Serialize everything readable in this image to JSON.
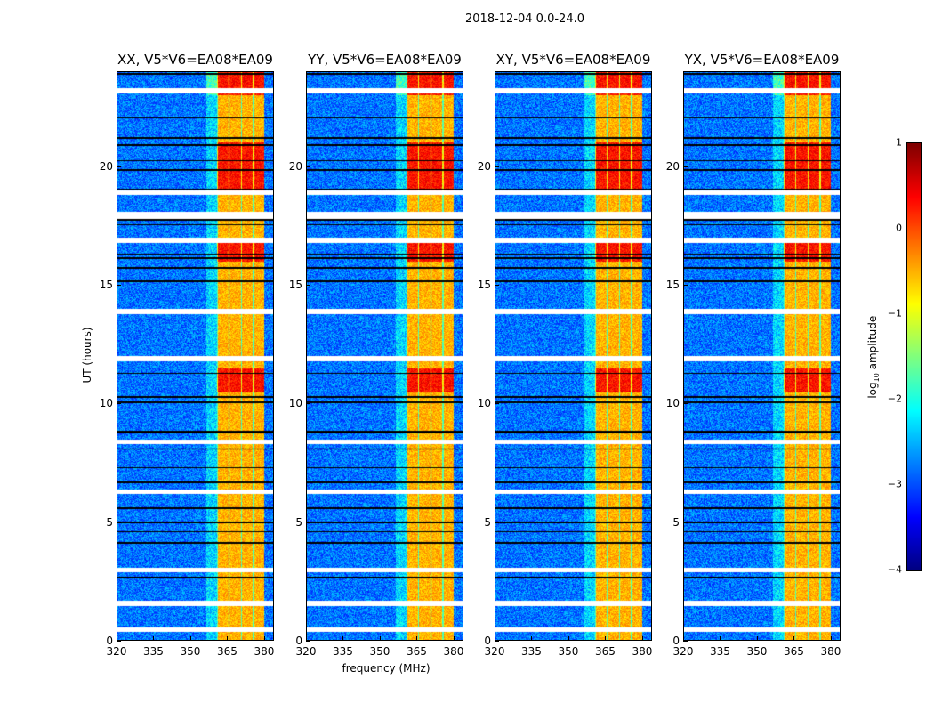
{
  "suptitle": "2018-12-04 0.0-24.0",
  "chart_data": {
    "type": "heatmap",
    "title": "2018-12-04 0.0-24.0",
    "xlabel": "frequency (MHz)",
    "ylabel": "UT (hours)",
    "xlim": [
      320,
      384
    ],
    "ylim": [
      0,
      24
    ],
    "xticks": [
      "320",
      "335",
      "350",
      "365",
      "380"
    ],
    "yticks": [
      "0",
      "5",
      "10",
      "15",
      "20"
    ],
    "panels": [
      {
        "title": "XX, V5*V6=EA08*EA09"
      },
      {
        "title": "YY, V5*V6=EA08*EA09"
      },
      {
        "title": "XY, V5*V6=EA08*EA09"
      },
      {
        "title": "YX, V5*V6=EA08*EA09"
      }
    ],
    "background_log10_amplitude": -2.8,
    "rfi_band_mhz": [
      360.5,
      380
    ],
    "rfi_band_log10_amplitude": -0.5,
    "high_amplitude_ut_hours": [
      [
        23,
        24
      ],
      [
        16,
        17
      ],
      [
        10.5,
        11.5
      ],
      [
        19,
        21
      ]
    ],
    "flagged_ut_hours": [
      [
        0.4,
        0.6
      ],
      [
        1.5,
        1.7
      ],
      [
        2.9,
        3.1
      ],
      [
        6.2,
        6.4
      ],
      [
        8.3,
        8.5
      ],
      [
        11.8,
        12.0
      ],
      [
        13.8,
        14.0
      ],
      [
        16.8,
        17.0
      ],
      [
        17.8,
        18.1
      ],
      [
        18.8,
        19.0
      ],
      [
        23.1,
        23.3
      ]
    ],
    "colorbar": {
      "label_prefix": "log",
      "label_sub": "10",
      "label_suffix": " amplitude",
      "range": [
        -4,
        1
      ],
      "ticks": [
        "1",
        "0",
        "−1",
        "−2",
        "−3",
        "−4"
      ],
      "colormap": "jet"
    }
  }
}
